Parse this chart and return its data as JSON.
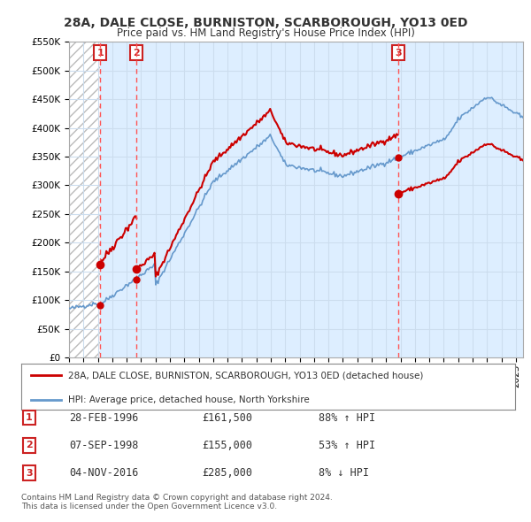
{
  "title": "28A, DALE CLOSE, BURNISTON, SCARBOROUGH, YO13 0ED",
  "subtitle": "Price paid vs. HM Land Registry's House Price Index (HPI)",
  "legend_line1": "28A, DALE CLOSE, BURNISTON, SCARBOROUGH, YO13 0ED (detached house)",
  "legend_line2": "HPI: Average price, detached house, North Yorkshire",
  "table_rows": [
    {
      "num": "1",
      "date": "28-FEB-1996",
      "price": "£161,500",
      "pct": "88% ↑ HPI"
    },
    {
      "num": "2",
      "date": "07-SEP-1998",
      "price": "£155,000",
      "pct": "53% ↑ HPI"
    },
    {
      "num": "3",
      "date": "04-NOV-2016",
      "price": "£285,000",
      "pct": "8% ↓ HPI"
    }
  ],
  "copyright": "Contains HM Land Registry data © Crown copyright and database right 2024.\nThis data is licensed under the Open Government Licence v3.0.",
  "sale_dates": [
    1996.16,
    1998.68,
    2016.84
  ],
  "sale_prices": [
    161500,
    155000,
    285000
  ],
  "ylim": [
    0,
    550000
  ],
  "xlim": [
    1994.0,
    2025.5
  ],
  "yticks": [
    0,
    50000,
    100000,
    150000,
    200000,
    250000,
    300000,
    350000,
    400000,
    450000,
    500000,
    550000
  ],
  "ytick_labels": [
    "£0",
    "£50K",
    "£100K",
    "£150K",
    "£200K",
    "£250K",
    "£300K",
    "£350K",
    "£400K",
    "£450K",
    "£500K",
    "£550K"
  ],
  "price_line_color": "#cc0000",
  "hpi_line_color": "#6699cc",
  "grid_color": "#ccddee",
  "background_color": "#ddeeff",
  "hatch_color": "#bbbbbb",
  "vline_color": "#ff5555",
  "marker_color": "#cc0000",
  "box_edge_color": "#cc2222",
  "box_num_color": "#cc2222"
}
